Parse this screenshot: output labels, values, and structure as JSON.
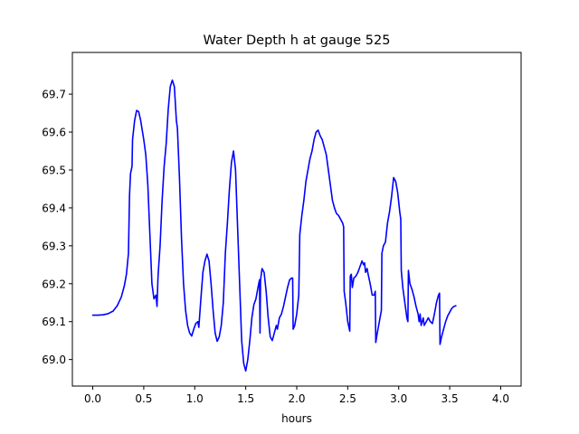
{
  "chart_data": {
    "type": "line",
    "title": "Water Depth h at gauge 525",
    "xlabel": "hours",
    "ylabel": "",
    "xlim": [
      -0.2,
      4.2
    ],
    "ylim": [
      68.93,
      69.81
    ],
    "xticks": [
      0.0,
      0.5,
      1.0,
      1.5,
      2.0,
      2.5,
      3.0,
      3.5,
      4.0
    ],
    "xtick_labels": [
      "0.0",
      "0.5",
      "1.0",
      "1.5",
      "2.0",
      "2.5",
      "3.0",
      "3.5",
      "4.0"
    ],
    "yticks": [
      69.0,
      69.1,
      69.2,
      69.3,
      69.4,
      69.5,
      69.6,
      69.7
    ],
    "ytick_labels": [
      "69.0",
      "69.1",
      "69.2",
      "69.3",
      "69.4",
      "69.5",
      "69.6",
      "69.7"
    ],
    "grid": false,
    "series": [
      {
        "color": "#0000ff",
        "points": [
          [
            0.0,
            69.117
          ],
          [
            0.05,
            69.117
          ],
          [
            0.1,
            69.118
          ],
          [
            0.15,
            69.121
          ],
          [
            0.2,
            69.128
          ],
          [
            0.24,
            69.142
          ],
          [
            0.28,
            69.165
          ],
          [
            0.31,
            69.195
          ],
          [
            0.33,
            69.225
          ],
          [
            0.35,
            69.28
          ],
          [
            0.36,
            69.43
          ],
          [
            0.37,
            69.49
          ],
          [
            0.385,
            69.51
          ],
          [
            0.39,
            69.58
          ],
          [
            0.41,
            69.63
          ],
          [
            0.43,
            69.657
          ],
          [
            0.45,
            69.654
          ],
          [
            0.47,
            69.63
          ],
          [
            0.5,
            69.58
          ],
          [
            0.52,
            69.54
          ],
          [
            0.54,
            69.46
          ],
          [
            0.56,
            69.33
          ],
          [
            0.58,
            69.2
          ],
          [
            0.6,
            69.16
          ],
          [
            0.62,
            69.17
          ],
          [
            0.63,
            69.14
          ],
          [
            0.64,
            69.22
          ],
          [
            0.66,
            69.3
          ],
          [
            0.68,
            69.42
          ],
          [
            0.7,
            69.51
          ],
          [
            0.72,
            69.57
          ],
          [
            0.74,
            69.66
          ],
          [
            0.76,
            69.72
          ],
          [
            0.78,
            69.737
          ],
          [
            0.8,
            69.72
          ],
          [
            0.82,
            69.63
          ],
          [
            0.83,
            69.61
          ],
          [
            0.85,
            69.48
          ],
          [
            0.87,
            69.32
          ],
          [
            0.89,
            69.2
          ],
          [
            0.91,
            69.13
          ],
          [
            0.93,
            69.09
          ],
          [
            0.95,
            69.07
          ],
          [
            0.97,
            69.062
          ],
          [
            0.99,
            69.08
          ],
          [
            1.01,
            69.095
          ],
          [
            1.03,
            69.1
          ],
          [
            1.04,
            69.085
          ],
          [
            1.06,
            69.16
          ],
          [
            1.08,
            69.23
          ],
          [
            1.1,
            69.26
          ],
          [
            1.12,
            69.278
          ],
          [
            1.14,
            69.26
          ],
          [
            1.16,
            69.2
          ],
          [
            1.18,
            69.13
          ],
          [
            1.2,
            69.07
          ],
          [
            1.22,
            69.048
          ],
          [
            1.24,
            69.06
          ],
          [
            1.26,
            69.09
          ],
          [
            1.28,
            69.15
          ],
          [
            1.3,
            69.28
          ],
          [
            1.32,
            69.36
          ],
          [
            1.34,
            69.45
          ],
          [
            1.36,
            69.52
          ],
          [
            1.38,
            69.55
          ],
          [
            1.4,
            69.5
          ],
          [
            1.42,
            69.35
          ],
          [
            1.44,
            69.2
          ],
          [
            1.46,
            69.05
          ],
          [
            1.48,
            68.99
          ],
          [
            1.5,
            68.97
          ],
          [
            1.52,
            69.0
          ],
          [
            1.54,
            69.05
          ],
          [
            1.56,
            69.11
          ],
          [
            1.58,
            69.145
          ],
          [
            1.6,
            69.16
          ],
          [
            1.62,
            69.19
          ],
          [
            1.635,
            69.21
          ],
          [
            1.64,
            69.07
          ],
          [
            1.645,
            69.21
          ],
          [
            1.66,
            69.24
          ],
          [
            1.68,
            69.23
          ],
          [
            1.7,
            69.18
          ],
          [
            1.72,
            69.11
          ],
          [
            1.74,
            69.06
          ],
          [
            1.76,
            69.05
          ],
          [
            1.78,
            69.07
          ],
          [
            1.8,
            69.09
          ],
          [
            1.81,
            69.08
          ],
          [
            1.83,
            69.11
          ],
          [
            1.85,
            69.12
          ],
          [
            1.87,
            69.14
          ],
          [
            1.89,
            69.165
          ],
          [
            1.91,
            69.19
          ],
          [
            1.93,
            69.21
          ],
          [
            1.95,
            69.215
          ],
          [
            1.96,
            69.215
          ],
          [
            1.965,
            69.08
          ],
          [
            1.98,
            69.09
          ],
          [
            2.0,
            69.12
          ],
          [
            2.02,
            69.17
          ],
          [
            2.03,
            69.33
          ],
          [
            2.05,
            69.38
          ],
          [
            2.07,
            69.42
          ],
          [
            2.09,
            69.47
          ],
          [
            2.11,
            69.5
          ],
          [
            2.13,
            69.53
          ],
          [
            2.15,
            69.55
          ],
          [
            2.17,
            69.58
          ],
          [
            2.19,
            69.6
          ],
          [
            2.21,
            69.605
          ],
          [
            2.23,
            69.59
          ],
          [
            2.25,
            69.58
          ],
          [
            2.27,
            69.56
          ],
          [
            2.29,
            69.54
          ],
          [
            2.31,
            69.5
          ],
          [
            2.33,
            69.46
          ],
          [
            2.35,
            69.42
          ],
          [
            2.37,
            69.4
          ],
          [
            2.39,
            69.385
          ],
          [
            2.41,
            69.38
          ],
          [
            2.43,
            69.37
          ],
          [
            2.45,
            69.36
          ],
          [
            2.46,
            69.35
          ],
          [
            2.465,
            69.18
          ],
          [
            2.48,
            69.15
          ],
          [
            2.5,
            69.1
          ],
          [
            2.52,
            69.075
          ],
          [
            2.525,
            69.22
          ],
          [
            2.535,
            69.225
          ],
          [
            2.545,
            69.19
          ],
          [
            2.56,
            69.215
          ],
          [
            2.58,
            69.22
          ],
          [
            2.6,
            69.23
          ],
          [
            2.62,
            69.245
          ],
          [
            2.64,
            69.26
          ],
          [
            2.655,
            69.25
          ],
          [
            2.665,
            69.255
          ],
          [
            2.675,
            69.23
          ],
          [
            2.69,
            69.24
          ],
          [
            2.7,
            69.225
          ],
          [
            2.72,
            69.2
          ],
          [
            2.74,
            69.17
          ],
          [
            2.76,
            69.17
          ],
          [
            2.77,
            69.18
          ],
          [
            2.775,
            69.045
          ],
          [
            2.79,
            69.07
          ],
          [
            2.81,
            69.1
          ],
          [
            2.83,
            69.13
          ],
          [
            2.835,
            69.28
          ],
          [
            2.85,
            69.3
          ],
          [
            2.87,
            69.31
          ],
          [
            2.89,
            69.36
          ],
          [
            2.91,
            69.39
          ],
          [
            2.93,
            69.43
          ],
          [
            2.95,
            69.48
          ],
          [
            2.97,
            69.47
          ],
          [
            2.99,
            69.44
          ],
          [
            3.01,
            69.39
          ],
          [
            3.02,
            69.37
          ],
          [
            3.025,
            69.235
          ],
          [
            3.04,
            69.19
          ],
          [
            3.06,
            69.15
          ],
          [
            3.08,
            69.11
          ],
          [
            3.09,
            69.1
          ],
          [
            3.095,
            69.235
          ],
          [
            3.11,
            69.2
          ],
          [
            3.13,
            69.185
          ],
          [
            3.15,
            69.165
          ],
          [
            3.17,
            69.14
          ],
          [
            3.19,
            69.12
          ],
          [
            3.2,
            69.1
          ],
          [
            3.21,
            69.12
          ],
          [
            3.22,
            69.09
          ],
          [
            3.24,
            69.11
          ],
          [
            3.25,
            69.09
          ],
          [
            3.27,
            69.1
          ],
          [
            3.29,
            69.11
          ],
          [
            3.31,
            69.1
          ],
          [
            3.33,
            69.095
          ],
          [
            3.35,
            69.12
          ],
          [
            3.37,
            69.15
          ],
          [
            3.39,
            69.17
          ],
          [
            3.4,
            69.175
          ],
          [
            3.405,
            69.04
          ],
          [
            3.42,
            69.06
          ],
          [
            3.44,
            69.08
          ],
          [
            3.46,
            69.1
          ],
          [
            3.48,
            69.115
          ],
          [
            3.5,
            69.125
          ],
          [
            3.52,
            69.135
          ],
          [
            3.54,
            69.14
          ],
          [
            3.56,
            69.142
          ]
        ]
      }
    ]
  }
}
